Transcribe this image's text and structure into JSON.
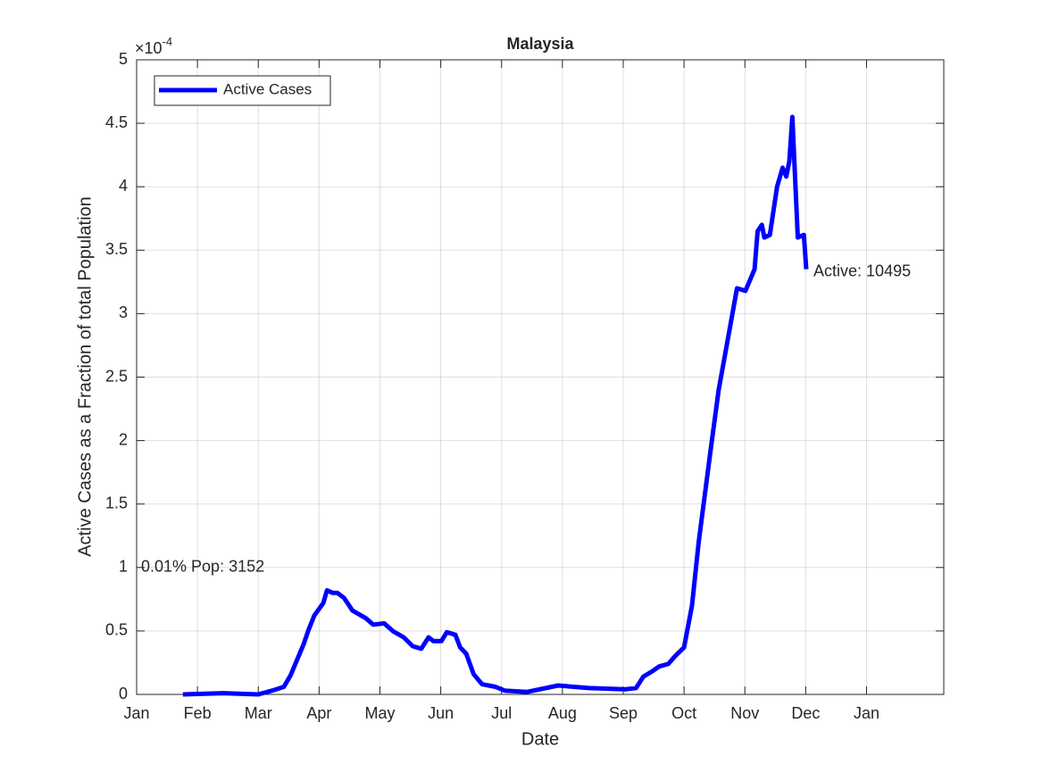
{
  "chart_data": {
    "type": "line",
    "title": "Malaysia",
    "xlabel": "Date",
    "ylabel": "Active Cases as a Fraction of total Population",
    "axis_multiplier": {
      "base": "×10",
      "exponent": "-4"
    },
    "annotations": [
      "0.01% Pop: 3152",
      "Active: 10495"
    ],
    "grid": true,
    "legend": "upper left",
    "xlim": [
      0,
      13.27
    ],
    "xticks": [
      {
        "value": 0,
        "label": "Jan"
      },
      {
        "value": 1,
        "label": "Feb"
      },
      {
        "value": 2,
        "label": "Mar"
      },
      {
        "value": 3,
        "label": "Apr"
      },
      {
        "value": 4,
        "label": "May"
      },
      {
        "value": 5,
        "label": "Jun"
      },
      {
        "value": 6,
        "label": "Jul"
      },
      {
        "value": 7,
        "label": "Aug"
      },
      {
        "value": 8,
        "label": "Sep"
      },
      {
        "value": 9,
        "label": "Oct"
      },
      {
        "value": 10,
        "label": "Nov"
      },
      {
        "value": 11,
        "label": "Dec"
      },
      {
        "value": 12,
        "label": "Jan"
      }
    ],
    "ylim": [
      0,
      5
    ],
    "yticks": [
      0,
      0.5,
      1,
      1.5,
      2,
      2.5,
      3,
      3.5,
      4,
      4.5,
      5
    ],
    "x": [
      0.76,
      1.42,
      2.0,
      2.23,
      2.42,
      2.53,
      2.75,
      2.82,
      2.92,
      3.07,
      3.13,
      3.22,
      3.3,
      3.41,
      3.55,
      3.77,
      3.89,
      4.07,
      4.21,
      4.39,
      4.54,
      4.68,
      4.8,
      4.88,
      5.01,
      5.1,
      5.24,
      5.32,
      5.42,
      5.54,
      5.68,
      5.9,
      6.05,
      6.42,
      6.93,
      7.44,
      8.03,
      8.21,
      8.33,
      8.47,
      8.59,
      8.74,
      8.85,
      9.0,
      9.13,
      9.24,
      9.43,
      9.57,
      9.72,
      9.87,
      10.01,
      10.16,
      10.21,
      10.28,
      10.32,
      10.41,
      10.53,
      10.62,
      10.68,
      10.73,
      10.78,
      10.87,
      10.97,
      11.01
    ],
    "series": [
      {
        "name": "Active Cases",
        "color": "#0000ff",
        "values": [
          0,
          0.01,
          0,
          0.03,
          0.06,
          0.15,
          0.4,
          0.5,
          0.62,
          0.72,
          0.82,
          0.8,
          0.8,
          0.76,
          0.66,
          0.6,
          0.55,
          0.56,
          0.5,
          0.45,
          0.38,
          0.36,
          0.45,
          0.42,
          0.42,
          0.49,
          0.47,
          0.37,
          0.32,
          0.16,
          0.08,
          0.06,
          0.03,
          0.02,
          0.07,
          0.05,
          0.04,
          0.05,
          0.14,
          0.18,
          0.22,
          0.24,
          0.3,
          0.37,
          0.7,
          1.2,
          1.9,
          2.4,
          2.8,
          3.2,
          3.18,
          3.35,
          3.65,
          3.7,
          3.6,
          3.62,
          4.0,
          4.15,
          4.08,
          4.2,
          4.55,
          3.6,
          3.62,
          3.35
        ]
      }
    ]
  }
}
